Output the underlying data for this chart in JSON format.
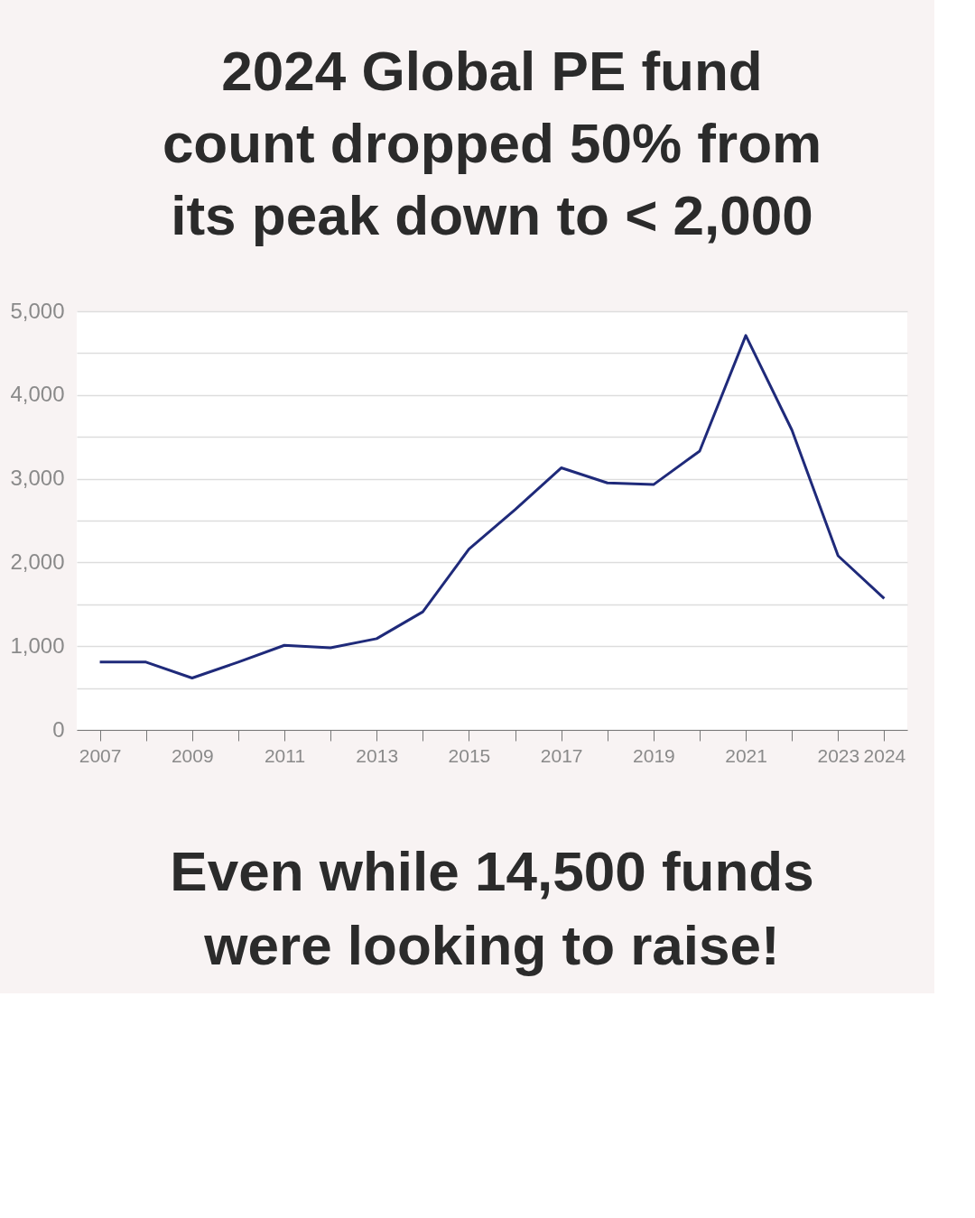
{
  "chart_data": {
    "type": "line",
    "title": "2024 Global PE fund count dropped 50% from its peak down to < 2,000",
    "x": [
      2007,
      2008,
      2009,
      2010,
      2011,
      2012,
      2013,
      2014,
      2015,
      2016,
      2017,
      2018,
      2019,
      2020,
      2021,
      2022,
      2023,
      2024
    ],
    "series": [
      {
        "color": "#1f2a7a",
        "values": [
          810,
          810,
          620,
          810,
          1010,
          980,
          1090,
          1410,
          2160,
          2630,
          3130,
          2950,
          2930,
          3330,
          4710,
          3580,
          2080,
          1570
        ]
      }
    ],
    "xlim": [
      2006.5,
      2024.5
    ],
    "xticks": [
      2007,
      {
        "value": 2008,
        "label": null
      },
      2009,
      {
        "value": 2010,
        "label": null
      },
      2011,
      {
        "value": 2012,
        "label": null
      },
      2013,
      {
        "value": 2014,
        "label": null
      },
      2015,
      {
        "value": 2016,
        "label": null
      },
      2017,
      {
        "value": 2018,
        "label": null
      },
      2019,
      {
        "value": 2020,
        "label": null
      },
      2021,
      {
        "value": 2022,
        "label": null
      },
      2023,
      2024
    ],
    "ylim": [
      0,
      5000
    ],
    "yticks": [
      0,
      {
        "value": 500,
        "label": null
      },
      {
        "value": 1000,
        "label": "1,000"
      },
      {
        "value": 1500,
        "label": null
      },
      {
        "value": 2000,
        "label": "2,000"
      },
      {
        "value": 2500,
        "label": null
      },
      {
        "value": 3000,
        "label": "3,000"
      },
      {
        "value": 3500,
        "label": null
      },
      {
        "value": 4000,
        "label": "4,000"
      },
      {
        "value": 4500,
        "label": null
      },
      {
        "value": 5000,
        "label": "5,000"
      }
    ],
    "grid": "y",
    "legend": false,
    "marker": "none",
    "line_style": "solid",
    "annotations": [
      "Even while 14,500 funds were looking to raise!"
    ]
  }
}
